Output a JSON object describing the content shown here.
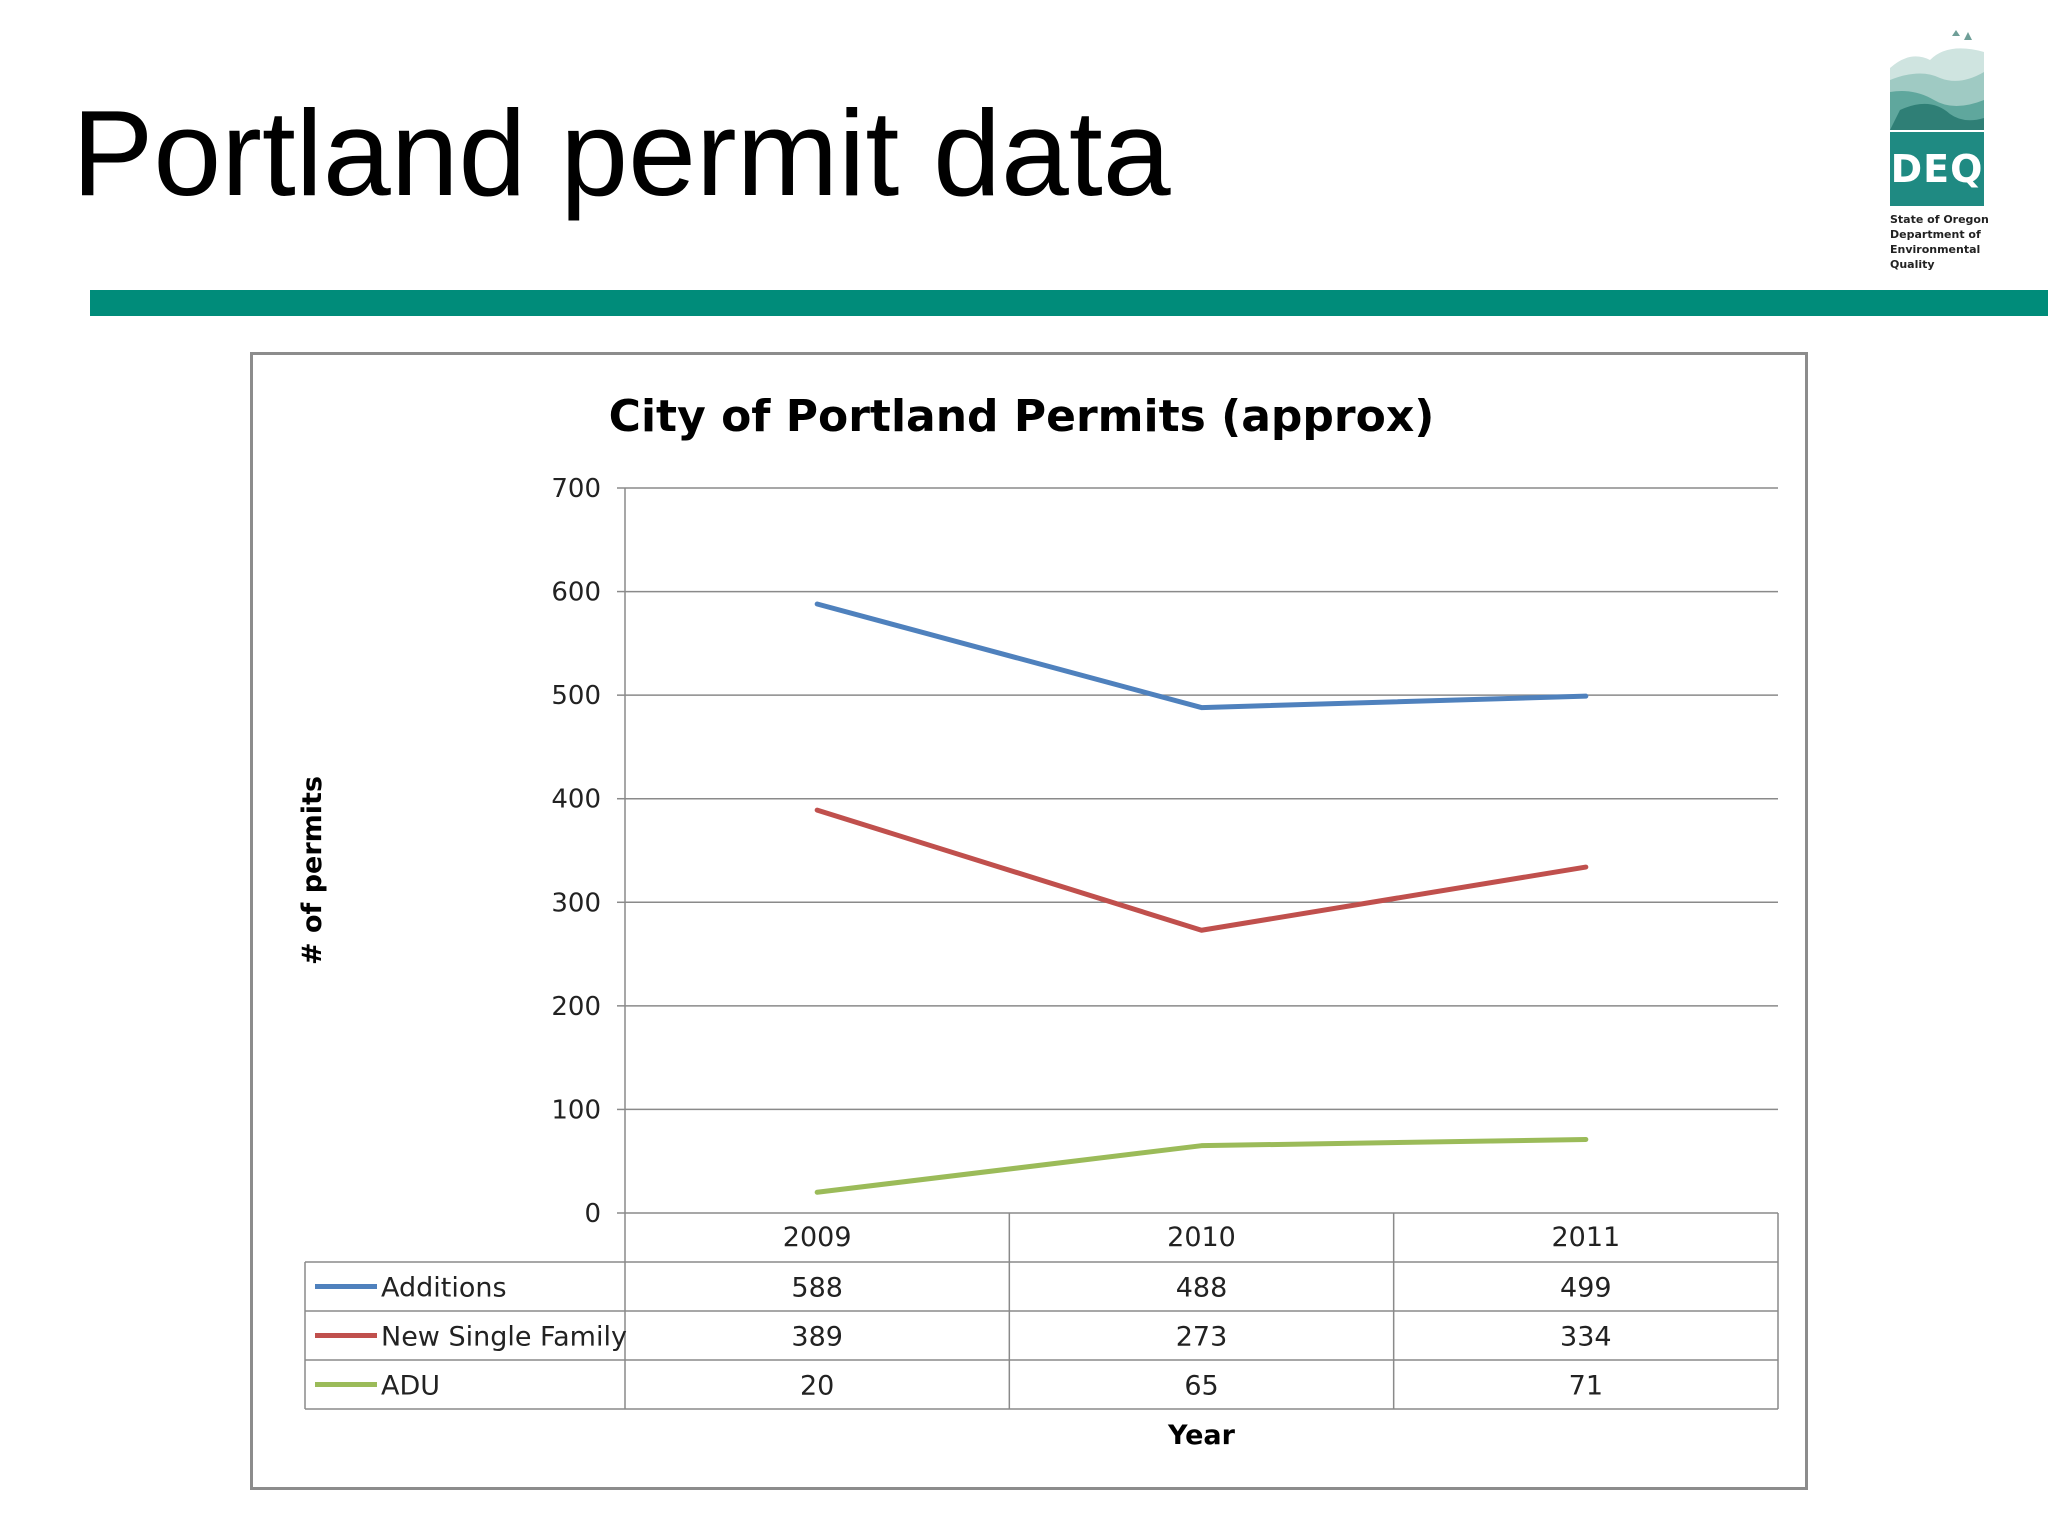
{
  "slide": {
    "title": "Portland permit data",
    "accent_color": "#008C7A"
  },
  "logo": {
    "name": "DEQ",
    "lines": [
      "State of Oregon",
      "Department of",
      "Environmental",
      "Quality"
    ],
    "box_color": "#1F8A82"
  },
  "chart_data": {
    "type": "line",
    "title": "City of Portland Permits (approx)",
    "xlabel": "Year",
    "ylabel": "# of permits",
    "categories": [
      "2009",
      "2010",
      "2011"
    ],
    "ylim": [
      0,
      700
    ],
    "yticks": [
      0,
      100,
      200,
      300,
      400,
      500,
      600,
      700
    ],
    "grid": true,
    "legend": "data-table",
    "series": [
      {
        "name": "Additions",
        "values": [
          588,
          488,
          499
        ],
        "color": "#4F81BD"
      },
      {
        "name": "New Single Family",
        "values": [
          389,
          273,
          334
        ],
        "color": "#C0504D"
      },
      {
        "name": "ADU",
        "values": [
          20,
          65,
          71
        ],
        "color": "#9BBB59"
      }
    ]
  }
}
